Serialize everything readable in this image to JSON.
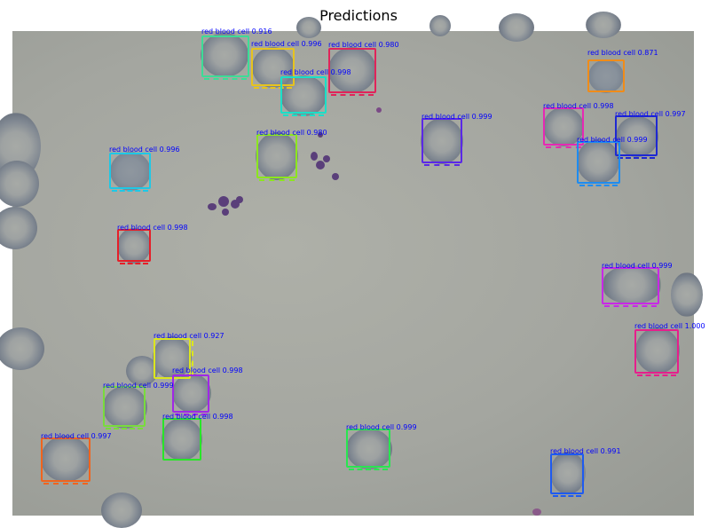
{
  "figure": {
    "title": "Predictions"
  },
  "detections": [
    {
      "label": "red blood cell",
      "score": "0.916",
      "color": "#3ddc97"
    },
    {
      "label": "red blood cell",
      "score": "0.996",
      "color": "#e6c31e"
    },
    {
      "label": "red blood cell",
      "score": "0.980",
      "color": "#e0245a"
    },
    {
      "label": "red blood cell",
      "score": "0.998",
      "color": "#19e0c8"
    },
    {
      "label": "red blood cell",
      "score": "0.871",
      "color": "#f08c19"
    },
    {
      "label": "red blood cell",
      "score": "0.999",
      "color": "#5a28e6"
    },
    {
      "label": "red blood cell",
      "score": "0.998",
      "color": "#e628b4"
    },
    {
      "label": "red blood cell",
      "score": "0.997",
      "color": "#1e28d2"
    },
    {
      "label": "red blood cell",
      "score": "0.999",
      "color": "#1e8cf0"
    },
    {
      "label": "red blood cell",
      "score": "0.980",
      "color": "#8ce61e"
    },
    {
      "label": "red blood cell",
      "score": "0.996",
      "color": "#1ec8e6"
    },
    {
      "label": "red blood cell",
      "score": "0.998",
      "color": "#e61e28"
    },
    {
      "label": "red blood cell",
      "score": "0.999",
      "color": "#c828e6"
    },
    {
      "label": "red blood cell",
      "score": "1.000",
      "color": "#e61e8c"
    },
    {
      "label": "red blood cell",
      "score": "0.927",
      "color": "#dce61e"
    },
    {
      "label": "red blood cell",
      "score": "0.998",
      "color": "#a028e6"
    },
    {
      "label": "red blood cell",
      "score": "0.999",
      "color": "#78dc3c"
    },
    {
      "label": "red blood cell",
      "score": "0.998",
      "color": "#28e628"
    },
    {
      "label": "red blood cell",
      "score": "0.999",
      "color": "#28e650"
    },
    {
      "label": "red blood cell",
      "score": "0.997",
      "color": "#f0641e"
    },
    {
      "label": "red blood cell",
      "score": "0.991",
      "color": "#1e5af0"
    }
  ],
  "label_color": "#0000ff"
}
